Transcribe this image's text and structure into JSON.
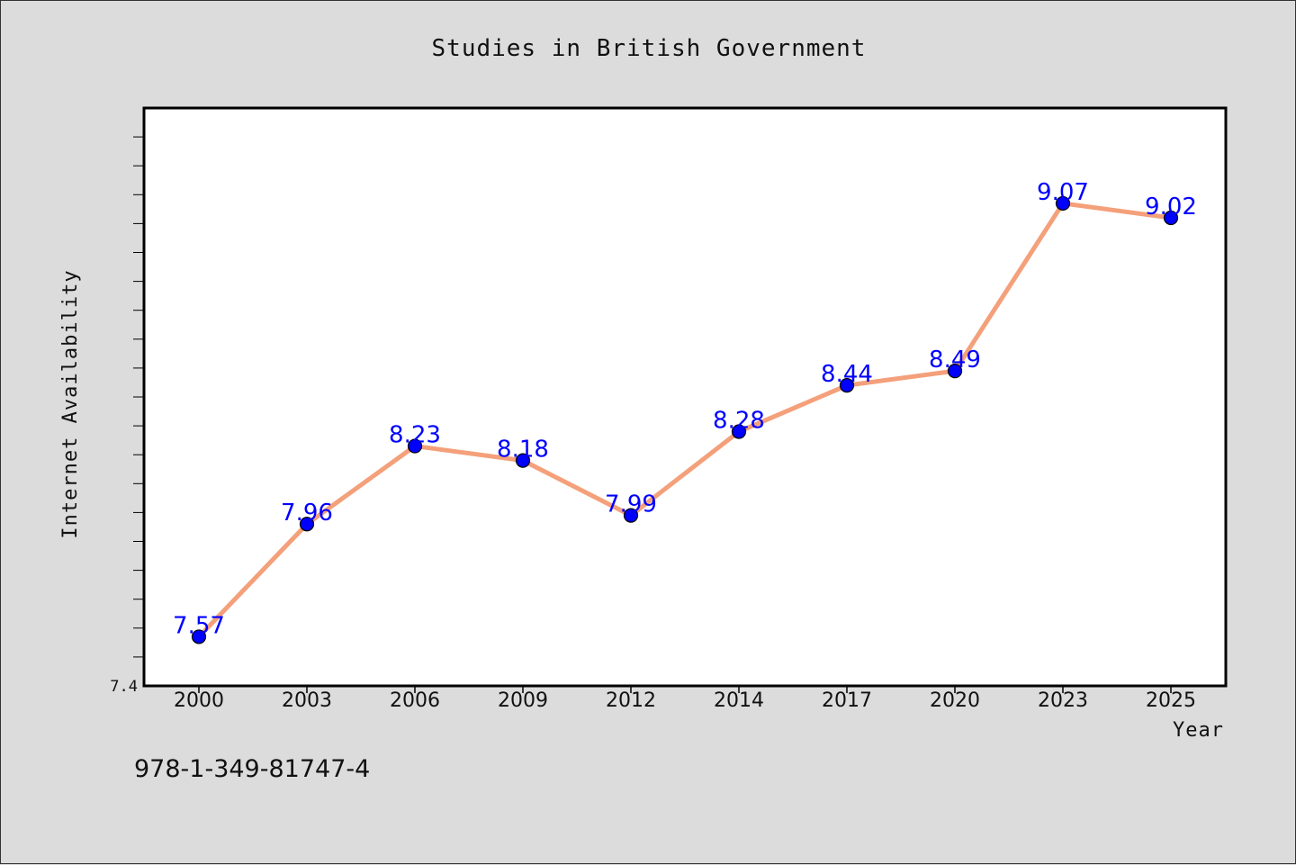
{
  "chart_data": {
    "type": "line",
    "title": "Studies in British Government",
    "xlabel": "Year",
    "ylabel": "Internet Availability",
    "categories": [
      "2000",
      "2003",
      "2006",
      "2009",
      "2012",
      "2014",
      "2017",
      "2020",
      "2023",
      "2025"
    ],
    "series": [
      {
        "values": [
          7.57,
          7.96,
          8.23,
          8.18,
          7.99,
          8.28,
          8.44,
          8.49,
          9.07,
          9.02
        ],
        "labels": [
          "7.57",
          "7.96",
          "8.23",
          "8.18",
          "7.99",
          "8.28",
          "8.44",
          "8.49",
          "9.07",
          "9.02"
        ]
      }
    ],
    "ylim": [
      7.4,
      9.4
    ],
    "y_tick_labels": [
      "7.4"
    ],
    "grid": false,
    "line_color": "#f4a07a",
    "marker_color": "#0000ff",
    "label_color": "#0000ff"
  },
  "footer": {
    "isbn": "978-1-349-81747-4"
  },
  "colors": {
    "background": "#dcdcdc",
    "plot_background": "#ffffff",
    "axis": "#000000"
  }
}
